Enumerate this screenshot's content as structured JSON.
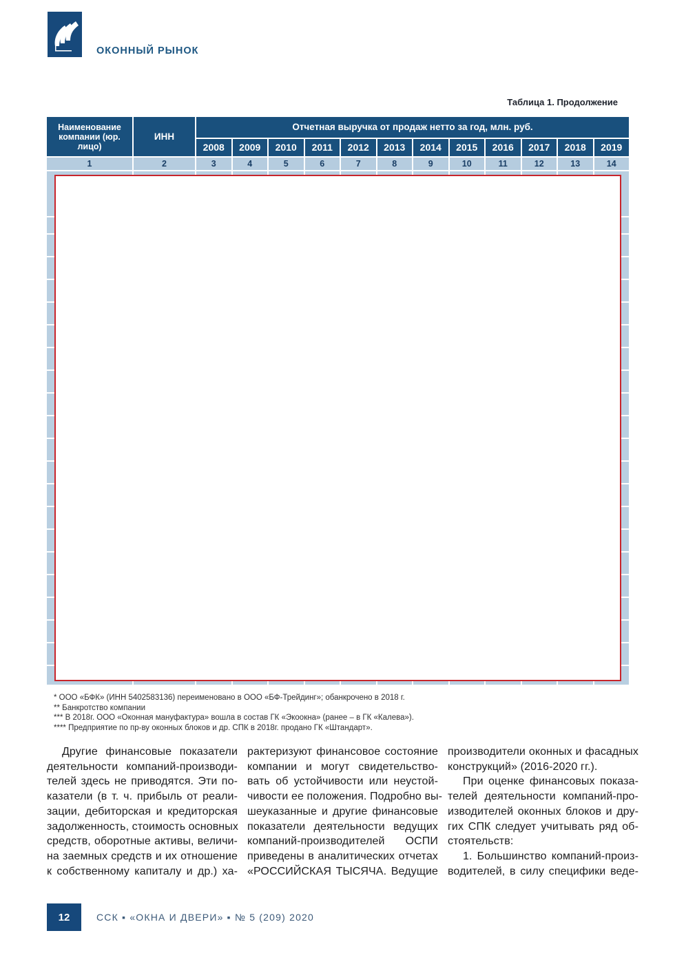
{
  "header": {
    "title": "ОКОННЫЙ РЫНОК",
    "logo": "publisher-swoosh-logo",
    "logo_color": "#17497b"
  },
  "table": {
    "caption": "Таблица 1. Продолжение",
    "col1_header": "Наименование компании (юр. лицо)",
    "col2_header": "ИНН",
    "revenue_header": "Отчетная выручка от продаж нетто за год, млн. руб.",
    "years": [
      "2008",
      "2009",
      "2010",
      "2011",
      "2012",
      "2013",
      "2014",
      "2015",
      "2016",
      "2017",
      "2018",
      "2019"
    ],
    "col_numbers": [
      "1",
      "2",
      "3",
      "4",
      "5",
      "6",
      "7",
      "8",
      "9",
      "10",
      "11",
      "12",
      "13",
      "14"
    ],
    "body_note": "таблица данных закрыта белой врезкой с красной рамкой",
    "colors": {
      "header_bg": "#19507d",
      "light_row_bg": "#b9cfe1",
      "number_row_bg": "#b5ccdf",
      "redaction_border": "#c8242b"
    }
  },
  "footnotes": [
    "* ООО «БФК» (ИНН 5402583136) переименовано в ООО «БФ-Трейдинг»; обанкрочено в 2018 г.",
    "** Банкротство компании",
    "*** В 2018г. ООО «Оконная мануфактура» вошла в состав ГК «Экоокна» (ранее – в ГК «Калева»).",
    "**** Предприятие по пр-ву оконных блоков и др. СПК в 2018г. продано ГК «Штандарт»."
  ],
  "article": {
    "columns": [
      [
        {
          "t": "Другие финансовые показатели",
          "indent": true
        },
        {
          "t": "деятельности компаний-производи-"
        },
        {
          "t": "телей здесь не приводятся. Эти по-"
        },
        {
          "t": "казатели (в т. ч. прибыль от реали-"
        },
        {
          "t": "зации, дебиторская и кредиторская"
        },
        {
          "t": "задолженность, стоимость основных"
        },
        {
          "t": "средств, оборотные активы, величи-"
        },
        {
          "t": "на заемных средств и их отношение"
        },
        {
          "t": "к собственному капиталу и др.) ха-"
        }
      ],
      [
        {
          "t": "рактеризуют финансовое состояние"
        },
        {
          "t": "компании и могут свидетельство-"
        },
        {
          "t": "вать об устойчивости или неустой-"
        },
        {
          "t": "чивости ее положения. Подробно вы-"
        },
        {
          "t": "шеуказанные и другие финансовые"
        },
        {
          "t": "показатели деятельности ведущих"
        },
        {
          "t": "компаний-производителей ОСПИ"
        },
        {
          "t": "приведены в аналитических отчетах"
        },
        {
          "t": "«РОССИЙСКАЯ ТЫСЯЧА. Ведущие"
        }
      ],
      [
        {
          "t": "производители оконных и фасадных"
        },
        {
          "t": "конструкций» (2016-2020 гг.).",
          "end": true
        },
        {
          "t": "При оценке финансовых показа-",
          "indent": true
        },
        {
          "t": "телей деятельности компаний-про-"
        },
        {
          "t": "изводителей оконных блоков и дру-"
        },
        {
          "t": "гих СПК следует учитывать ряд об-"
        },
        {
          "t": "стоятельств:",
          "end": true
        },
        {
          "t": "1. Большинство компаний-произ-",
          "indent": true
        },
        {
          "t": "водителей, в силу специфики веде-"
        }
      ]
    ]
  },
  "footer": {
    "page_number": "12",
    "imprint": "ССК ▪ «ОКНА И ДВЕРИ» ▪ № 5 (209) 2020"
  }
}
